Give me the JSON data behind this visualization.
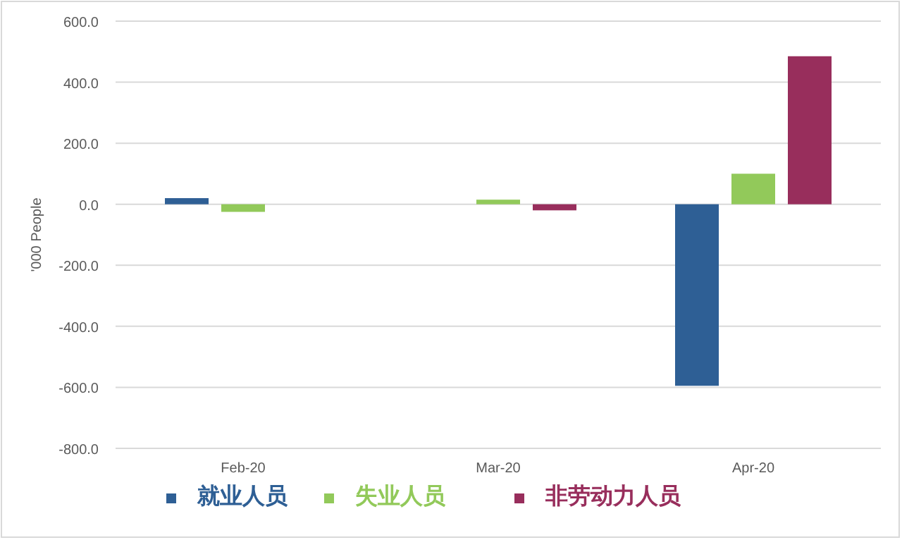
{
  "chart_data": {
    "type": "bar",
    "ylabel": "'000 People",
    "categories": [
      "Feb-20",
      "Mar-20",
      "Apr-20"
    ],
    "series": [
      {
        "name": "就业人员",
        "color": "#2e5f95",
        "values": [
          20,
          0,
          -595
        ]
      },
      {
        "name": "失业人员",
        "color": "#92c95a",
        "values": [
          -25,
          15,
          100
        ]
      },
      {
        "name": "非劳动力人员",
        "color": "#982e5c",
        "values": [
          0,
          -20,
          485
        ]
      }
    ],
    "ylim": [
      -800,
      600
    ],
    "yticks": [
      {
        "value": -800,
        "label": "-800.0"
      },
      {
        "value": -600,
        "label": "-600.0"
      },
      {
        "value": -400,
        "label": "-400.0"
      },
      {
        "value": -200,
        "label": "-200.0"
      },
      {
        "value": 0,
        "label": "0.0"
      },
      {
        "value": 200,
        "label": "200.0"
      },
      {
        "value": 400,
        "label": "400.0"
      },
      {
        "value": 600,
        "label": "600.0"
      }
    ],
    "grid": "y",
    "legend": "bottom"
  }
}
